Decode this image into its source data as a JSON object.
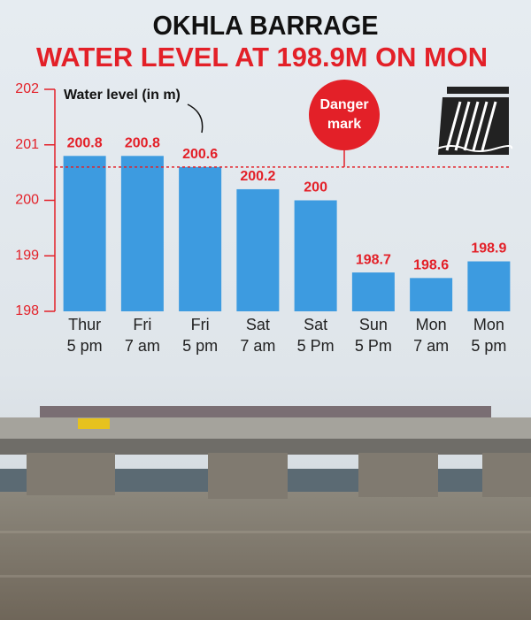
{
  "chart_data": {
    "type": "bar",
    "title": "OKHLA BARRAGE",
    "subtitle": "WATER LEVEL AT 198.9M ON MON",
    "y_label": "Water level (in m)",
    "categories": [
      [
        "Thur",
        "5 pm"
      ],
      [
        "Fri",
        "7 am"
      ],
      [
        "Fri",
        "5 pm"
      ],
      [
        "Sat",
        "7 am"
      ],
      [
        "Sat",
        "5 Pm"
      ],
      [
        "Sun",
        "5 Pm"
      ],
      [
        "Mon",
        "7 am"
      ],
      [
        "Mon",
        "5 pm"
      ]
    ],
    "values": [
      200.8,
      200.8,
      200.6,
      200.2,
      200,
      198.7,
      198.6,
      198.9
    ],
    "color": "#3d9be0",
    "label_color": "#e32028",
    "ylim": [
      198,
      202
    ],
    "yticks": [
      198,
      199,
      200,
      201,
      202
    ],
    "danger_level": 200.6,
    "danger_label": [
      "Danger",
      "mark"
    ]
  }
}
